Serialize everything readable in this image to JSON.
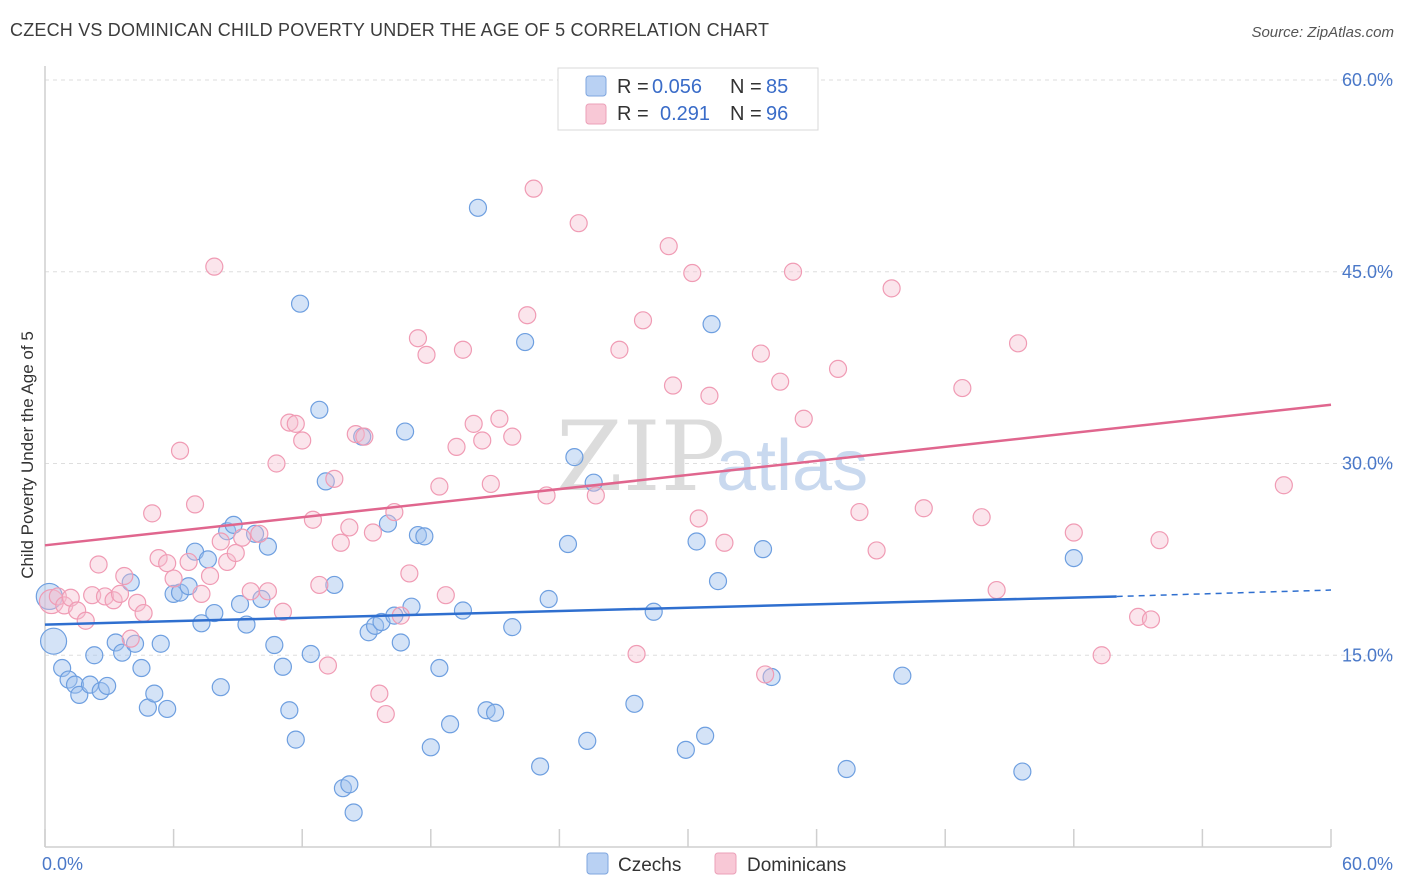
{
  "header": {
    "title": "CZECH VS DOMINICAN CHILD POVERTY UNDER THE AGE OF 5 CORRELATION CHART",
    "source": "Source: ZipAtlas.com"
  },
  "watermark": {
    "zip": "ZIP",
    "atlas": "atlas"
  },
  "colors": {
    "czech": "#6e9fe0",
    "czech_line": "#2f6fcf",
    "dominican": "#f09bb4",
    "dominican_line": "#e0668e",
    "tick": "#4a78c8"
  },
  "legend": {
    "rows": [
      {
        "r_label": "R =",
        "r_value": "0.056",
        "n_label": "N =",
        "n_value": "85"
      },
      {
        "r_label": "R =",
        "r_value": "0.291",
        "n_label": "N =",
        "n_value": "96"
      }
    ]
  },
  "bottom_legend": {
    "czechs": "Czechs",
    "dominicans": "Dominicans"
  },
  "chart_data": {
    "type": "scatter",
    "title": "CZECH VS DOMINICAN CHILD POVERTY UNDER THE AGE OF 5 CORRELATION CHART",
    "xlabel": "",
    "ylabel": "Child Poverty Under the Age of 5",
    "xlim": [
      0,
      60
    ],
    "ylim": [
      0,
      60
    ],
    "x_tick_labels": [
      "0.0%",
      "60.0%"
    ],
    "y_tick_values": [
      15,
      30,
      45,
      60
    ],
    "y_tick_labels": [
      "15.0%",
      "30.0%",
      "45.0%",
      "60.0%"
    ],
    "grid": true,
    "legend_position": "top-center",
    "series": [
      {
        "name": "Czechs",
        "r": 0.056,
        "n": 85,
        "trend": {
          "x0": 0,
          "y0": 17.4,
          "x1": 50,
          "y1": 19.6,
          "dashed_to": 60,
          "dashed_y": 20.1
        },
        "points": [
          [
            0.2,
            19.6
          ],
          [
            0.4,
            16.1
          ],
          [
            0.8,
            14.0
          ],
          [
            1.1,
            13.1
          ],
          [
            1.4,
            12.7
          ],
          [
            1.6,
            11.9
          ],
          [
            2.1,
            12.7
          ],
          [
            2.3,
            15.0
          ],
          [
            2.6,
            12.2
          ],
          [
            2.9,
            12.6
          ],
          [
            3.3,
            16.0
          ],
          [
            3.6,
            15.2
          ],
          [
            4.0,
            20.7
          ],
          [
            4.2,
            15.9
          ],
          [
            4.5,
            14.0
          ],
          [
            4.8,
            10.9
          ],
          [
            5.1,
            12.0
          ],
          [
            5.4,
            15.9
          ],
          [
            5.7,
            10.8
          ],
          [
            6.0,
            19.8
          ],
          [
            6.3,
            19.9
          ],
          [
            6.7,
            20.4
          ],
          [
            7.0,
            23.1
          ],
          [
            7.3,
            17.5
          ],
          [
            7.6,
            22.5
          ],
          [
            7.9,
            18.3
          ],
          [
            8.2,
            12.5
          ],
          [
            8.5,
            24.7
          ],
          [
            8.8,
            25.2
          ],
          [
            9.1,
            19.0
          ],
          [
            9.4,
            17.4
          ],
          [
            9.8,
            24.5
          ],
          [
            10.1,
            19.4
          ],
          [
            10.4,
            23.5
          ],
          [
            10.7,
            15.8
          ],
          [
            11.1,
            14.1
          ],
          [
            11.4,
            10.7
          ],
          [
            11.7,
            8.4
          ],
          [
            11.9,
            42.5
          ],
          [
            12.4,
            15.1
          ],
          [
            12.8,
            34.2
          ],
          [
            13.1,
            28.6
          ],
          [
            13.5,
            20.5
          ],
          [
            13.9,
            4.6
          ],
          [
            14.2,
            4.9
          ],
          [
            14.4,
            2.7
          ],
          [
            14.8,
            32.1
          ],
          [
            15.1,
            16.8
          ],
          [
            15.4,
            17.3
          ],
          [
            15.7,
            17.6
          ],
          [
            16.0,
            25.3
          ],
          [
            16.3,
            18.1
          ],
          [
            16.6,
            16.0
          ],
          [
            16.8,
            32.5
          ],
          [
            17.1,
            18.8
          ],
          [
            17.4,
            24.4
          ],
          [
            17.7,
            24.3
          ],
          [
            18.0,
            7.8
          ],
          [
            18.4,
            14.0
          ],
          [
            18.9,
            9.6
          ],
          [
            19.5,
            18.5
          ],
          [
            20.2,
            50.0
          ],
          [
            20.6,
            10.7
          ],
          [
            21.0,
            10.5
          ],
          [
            21.8,
            17.2
          ],
          [
            22.4,
            39.5
          ],
          [
            23.1,
            6.3
          ],
          [
            23.5,
            19.4
          ],
          [
            24.4,
            23.7
          ],
          [
            24.7,
            30.5
          ],
          [
            25.3,
            8.3
          ],
          [
            25.6,
            28.5
          ],
          [
            27.5,
            11.2
          ],
          [
            28.4,
            18.4
          ],
          [
            29.9,
            7.6
          ],
          [
            30.4,
            23.9
          ],
          [
            30.8,
            8.7
          ],
          [
            31.1,
            40.9
          ],
          [
            31.4,
            20.8
          ],
          [
            33.5,
            23.3
          ],
          [
            33.9,
            13.3
          ],
          [
            37.4,
            6.1
          ],
          [
            40.0,
            13.4
          ],
          [
            45.6,
            5.9
          ],
          [
            48.0,
            22.6
          ]
        ]
      },
      {
        "name": "Dominicans",
        "r": 0.291,
        "n": 96,
        "trend": {
          "x0": 0,
          "y0": 23.6,
          "x1": 60,
          "y1": 34.6
        },
        "points": [
          [
            0.3,
            19.2
          ],
          [
            0.6,
            19.6
          ],
          [
            0.9,
            18.9
          ],
          [
            1.2,
            19.5
          ],
          [
            1.5,
            18.5
          ],
          [
            1.9,
            17.7
          ],
          [
            2.2,
            19.7
          ],
          [
            2.5,
            22.1
          ],
          [
            2.8,
            19.6
          ],
          [
            3.2,
            19.3
          ],
          [
            3.5,
            19.8
          ],
          [
            3.7,
            21.2
          ],
          [
            4.0,
            16.3
          ],
          [
            4.3,
            19.1
          ],
          [
            4.6,
            18.3
          ],
          [
            5.0,
            26.1
          ],
          [
            5.3,
            22.6
          ],
          [
            5.7,
            22.2
          ],
          [
            6.0,
            21.0
          ],
          [
            6.3,
            31.0
          ],
          [
            6.7,
            22.3
          ],
          [
            7.0,
            26.8
          ],
          [
            7.3,
            19.8
          ],
          [
            7.7,
            21.2
          ],
          [
            7.9,
            45.4
          ],
          [
            8.2,
            23.9
          ],
          [
            8.5,
            22.3
          ],
          [
            8.9,
            23.0
          ],
          [
            9.2,
            24.2
          ],
          [
            9.6,
            20.0
          ],
          [
            10.0,
            24.5
          ],
          [
            10.4,
            20.0
          ],
          [
            10.8,
            30.0
          ],
          [
            11.1,
            18.4
          ],
          [
            11.4,
            33.2
          ],
          [
            11.7,
            33.1
          ],
          [
            12.0,
            31.8
          ],
          [
            12.5,
            25.6
          ],
          [
            12.8,
            20.5
          ],
          [
            13.2,
            14.2
          ],
          [
            13.5,
            28.8
          ],
          [
            13.8,
            23.8
          ],
          [
            14.2,
            25.0
          ],
          [
            14.5,
            32.3
          ],
          [
            14.9,
            32.1
          ],
          [
            15.3,
            24.6
          ],
          [
            15.6,
            12.0
          ],
          [
            15.9,
            10.4
          ],
          [
            16.3,
            26.2
          ],
          [
            16.6,
            18.1
          ],
          [
            17.0,
            21.4
          ],
          [
            17.4,
            39.8
          ],
          [
            17.8,
            38.5
          ],
          [
            18.4,
            28.2
          ],
          [
            18.7,
            19.7
          ],
          [
            19.2,
            31.3
          ],
          [
            19.5,
            38.9
          ],
          [
            20.0,
            33.1
          ],
          [
            20.4,
            31.8
          ],
          [
            20.8,
            28.4
          ],
          [
            21.2,
            33.5
          ],
          [
            21.8,
            32.1
          ],
          [
            22.5,
            41.6
          ],
          [
            22.8,
            51.5
          ],
          [
            23.4,
            27.5
          ],
          [
            24.9,
            48.8
          ],
          [
            25.7,
            27.5
          ],
          [
            26.8,
            38.9
          ],
          [
            27.6,
            15.1
          ],
          [
            27.9,
            41.2
          ],
          [
            29.1,
            47.0
          ],
          [
            29.3,
            36.1
          ],
          [
            30.2,
            44.9
          ],
          [
            30.5,
            25.7
          ],
          [
            31.0,
            35.3
          ],
          [
            31.7,
            23.8
          ],
          [
            33.4,
            38.6
          ],
          [
            33.6,
            13.5
          ],
          [
            34.3,
            36.4
          ],
          [
            34.9,
            45.0
          ],
          [
            35.4,
            33.5
          ],
          [
            37.0,
            37.4
          ],
          [
            38.0,
            26.2
          ],
          [
            38.8,
            23.2
          ],
          [
            39.5,
            43.7
          ],
          [
            41.0,
            26.5
          ],
          [
            42.8,
            35.9
          ],
          [
            43.7,
            25.8
          ],
          [
            44.4,
            20.1
          ],
          [
            45.4,
            39.4
          ],
          [
            48.0,
            24.6
          ],
          [
            49.3,
            15.0
          ],
          [
            51.0,
            18.0
          ],
          [
            51.6,
            17.8
          ],
          [
            52.0,
            24.0
          ],
          [
            57.8,
            28.3
          ]
        ]
      }
    ]
  }
}
